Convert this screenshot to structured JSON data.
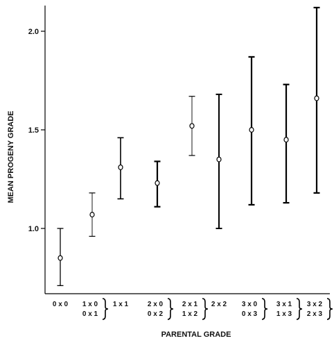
{
  "chart_data": {
    "type": "scatter",
    "title": "",
    "xlabel": "PARENTAL GRADE",
    "ylabel": "MEAN PROGENY GRADE",
    "ylim": [
      0.7,
      2.12
    ],
    "yticks": [
      1.0,
      1.5,
      2.0
    ],
    "ytick_labels": [
      "1.0",
      "1.5",
      "2.0"
    ],
    "grid": false,
    "legend": "none",
    "categories": [
      {
        "lines": [
          "0 x 0"
        ],
        "brace": false
      },
      {
        "lines": [
          "1 x 0",
          "0 x 1"
        ],
        "brace": true
      },
      {
        "lines": [
          "1 x 1"
        ],
        "brace": false
      },
      {
        "lines": [
          "2 x 0",
          "0 x 2"
        ],
        "brace": true
      },
      {
        "lines": [
          "2 x 1",
          "1 x 2"
        ],
        "brace": true
      },
      {
        "lines": [
          "2 x 2"
        ],
        "brace": false
      },
      {
        "lines": [
          "3 x 0",
          "0 x 3"
        ],
        "brace": true
      },
      {
        "lines": [
          "3 x 1",
          "1 x 3"
        ],
        "brace": true
      },
      {
        "lines": [
          "3 x 2",
          "2 x 3"
        ],
        "brace": true
      }
    ],
    "points": [
      {
        "mean": 0.85,
        "low": 0.71,
        "high": 1.0,
        "weight": 1.3
      },
      {
        "mean": 1.07,
        "low": 0.96,
        "high": 1.18,
        "weight": 0.9
      },
      {
        "mean": 1.31,
        "low": 1.15,
        "high": 1.46,
        "weight": 1.6
      },
      {
        "mean": 1.23,
        "low": 1.11,
        "high": 1.34,
        "weight": 2.2
      },
      {
        "mean": 1.52,
        "low": 1.37,
        "high": 1.67,
        "weight": 0.9
      },
      {
        "mean": 1.35,
        "low": 1.0,
        "high": 1.68,
        "weight": 2.0
      },
      {
        "mean": 1.5,
        "low": 1.12,
        "high": 1.87,
        "weight": 2.2
      },
      {
        "mean": 1.45,
        "low": 1.13,
        "high": 1.73,
        "weight": 2.2
      },
      {
        "mean": 1.66,
        "low": 1.18,
        "high": 2.12,
        "weight": 2.2
      }
    ]
  }
}
